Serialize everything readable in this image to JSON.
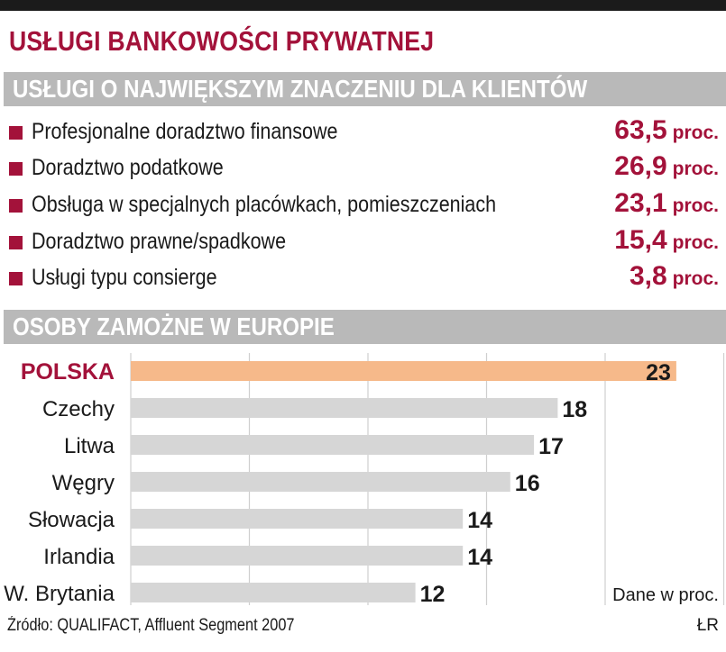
{
  "header": {
    "title": "USŁUGI BANKOWOŚCI PRYWATNEJ"
  },
  "services": {
    "heading": "USŁUGI O NAJWIĘKSZYM ZNACZENIU DLA KLIENTÓW",
    "items": [
      {
        "label": "Profesjonalne doradztwo finansowe",
        "value": "63,5",
        "unit": "proc."
      },
      {
        "label": "Doradztwo podatkowe",
        "value": "26,9",
        "unit": "proc."
      },
      {
        "label": "Obsługa w specjalnych placówkach, pomieszczeniach",
        "value": "23,1",
        "unit": "proc."
      },
      {
        "label": "Doradztwo prawne/spadkowe",
        "value": "15,4",
        "unit": "proc."
      },
      {
        "label": "Usługi typu consierge",
        "value": "3,8",
        "unit": "proc."
      }
    ]
  },
  "chart_data": {
    "type": "bar",
    "orientation": "horizontal",
    "title": "OSOBY ZAMOŻNE W EUROPIE",
    "categories": [
      "POLSKA",
      "Czechy",
      "Litwa",
      "Węgry",
      "Słowacja",
      "Irlandia",
      "W. Brytania"
    ],
    "values": [
      23,
      18,
      17,
      16,
      14,
      14,
      12
    ],
    "highlight": "POLSKA",
    "unit_note": "Dane w proc.",
    "xlim": [
      0,
      25
    ],
    "gridlines": [
      5,
      10,
      15,
      20,
      25
    ],
    "colors": {
      "bar": "#d6d6d6",
      "highlight": "#f6b98a",
      "highlight_label": "#a3123a",
      "grid": "#cfcfcf"
    }
  },
  "footer": {
    "source": "Źródło: QUALIFACT, Affluent Segment 2007",
    "signature": "ŁR"
  }
}
